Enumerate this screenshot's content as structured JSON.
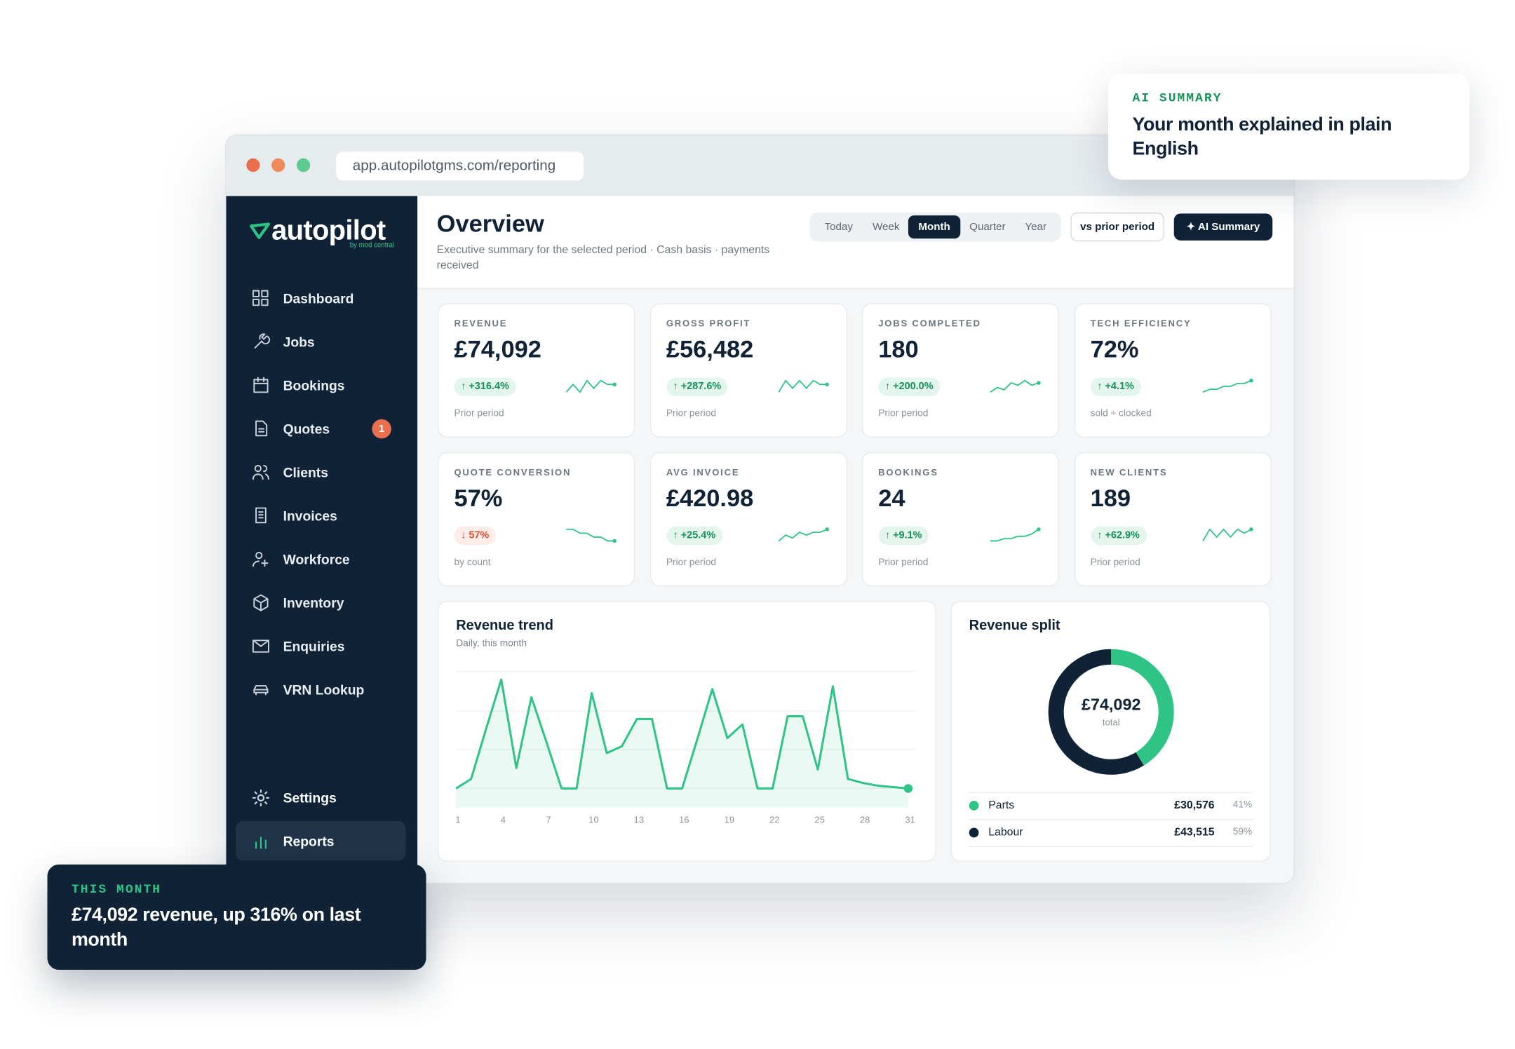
{
  "browser": {
    "url": "app.autopilotgms.com/reporting"
  },
  "sidebar": {
    "logo": "autopilot",
    "logo_sub": "by mod central",
    "nav": [
      {
        "label": "Dashboard"
      },
      {
        "label": "Jobs"
      },
      {
        "label": "Bookings"
      },
      {
        "label": "Quotes",
        "badge": "1"
      },
      {
        "label": "Clients"
      },
      {
        "label": "Invoices"
      },
      {
        "label": "Workforce"
      },
      {
        "label": "Inventory"
      },
      {
        "label": "Enquiries"
      },
      {
        "label": "VRN Lookup"
      }
    ],
    "footer_nav": [
      {
        "label": "Settings"
      },
      {
        "label": "Reports"
      }
    ],
    "active_footer": 1
  },
  "header": {
    "title": "Overview",
    "subtitle": "Executive summary for the selected period · Cash basis · payments received",
    "periods": [
      "Today",
      "Week",
      "Month",
      "Quarter",
      "Year"
    ],
    "active_period": 2,
    "compare_button": "vs prior period",
    "ai_button": "✦ AI Summary"
  },
  "kpis": [
    {
      "label": "REVENUE",
      "value": "£74,092",
      "change": "↑ +316.4%",
      "direction": "up",
      "note": "Prior period",
      "trend": [
        3,
        5,
        3,
        6,
        4,
        6,
        5,
        5
      ]
    },
    {
      "label": "GROSS PROFIT",
      "value": "£56,482",
      "change": "↑ +287.6%",
      "direction": "up",
      "note": "Prior period",
      "trend": [
        3,
        6,
        4,
        6,
        4,
        6,
        5,
        5
      ]
    },
    {
      "label": "JOBS COMPLETED",
      "value": "180",
      "change": "↑ +200.0%",
      "direction": "up",
      "note": "Prior period",
      "trend": [
        2,
        4,
        3,
        6,
        5,
        7,
        5,
        6
      ]
    },
    {
      "label": "TECH EFFICIENCY",
      "value": "72%",
      "change": "↑ +4.1%",
      "direction": "up",
      "note": "sold ÷ clocked",
      "trend": [
        2,
        3,
        3,
        4,
        4,
        5,
        5,
        6
      ]
    },
    {
      "label": "QUOTE CONVERSION",
      "value": "57%",
      "change": "↓ 57%",
      "direction": "down",
      "note": "by count",
      "trend": [
        7,
        7,
        6,
        6,
        5,
        5,
        4,
        4
      ]
    },
    {
      "label": "AVG INVOICE",
      "value": "£420.98",
      "change": "↑ +25.4%",
      "direction": "up",
      "note": "Prior period",
      "trend": [
        3,
        5,
        4,
        6,
        5,
        6,
        6,
        7
      ]
    },
    {
      "label": "BOOKINGS",
      "value": "24",
      "change": "↑ +9.1%",
      "direction": "up",
      "note": "Prior period",
      "trend": [
        2,
        2,
        3,
        3,
        4,
        4,
        5,
        7
      ]
    },
    {
      "label": "NEW CLIENTS",
      "value": "189",
      "change": "↑ +62.9%",
      "direction": "up",
      "note": "Prior period",
      "trend": [
        3,
        6,
        4,
        6,
        4,
        6,
        5,
        6
      ]
    }
  ],
  "revenue_trend": {
    "type": "line",
    "title": "Revenue trend",
    "subtitle": "Daily, this month",
    "x": [
      1,
      2,
      3,
      4,
      5,
      6,
      7,
      8,
      9,
      10,
      11,
      12,
      13,
      14,
      15,
      16,
      17,
      18,
      19,
      20,
      21,
      22,
      23,
      24,
      25,
      26,
      27,
      28,
      29,
      30,
      31
    ],
    "values": [
      14,
      21,
      58,
      94,
      29,
      81,
      48,
      14,
      14,
      84,
      40,
      45,
      65,
      65,
      14,
      14,
      50,
      87,
      51,
      61,
      14,
      14,
      67,
      67,
      28,
      89,
      21,
      18,
      16,
      15,
      14
    ],
    "xlim": [
      1,
      31
    ],
    "ylim": [
      0,
      100
    ],
    "xticks": [
      1,
      4,
      7,
      10,
      13,
      16,
      19,
      22,
      25,
      28,
      31
    ],
    "color": "#2fc486"
  },
  "revenue_split": {
    "type": "pie",
    "title": "Revenue split",
    "center_value": "£74,092",
    "center_label": "total",
    "categories": [
      "Parts",
      "Labour"
    ],
    "values": [
      30576,
      43515
    ],
    "value_labels": [
      "£30,576",
      "£43,515"
    ],
    "shares": [
      41,
      59
    ],
    "share_labels": [
      "41%",
      "59%"
    ],
    "colors": [
      "#2fc486",
      "#0f2236"
    ]
  },
  "callouts": {
    "ai_summary": {
      "kicker": "AI SUMMARY",
      "text": "Your month explained in plain English"
    },
    "this_month": {
      "kicker": "THIS MONTH",
      "text": "£74,092 revenue, up 316% on last month"
    }
  }
}
